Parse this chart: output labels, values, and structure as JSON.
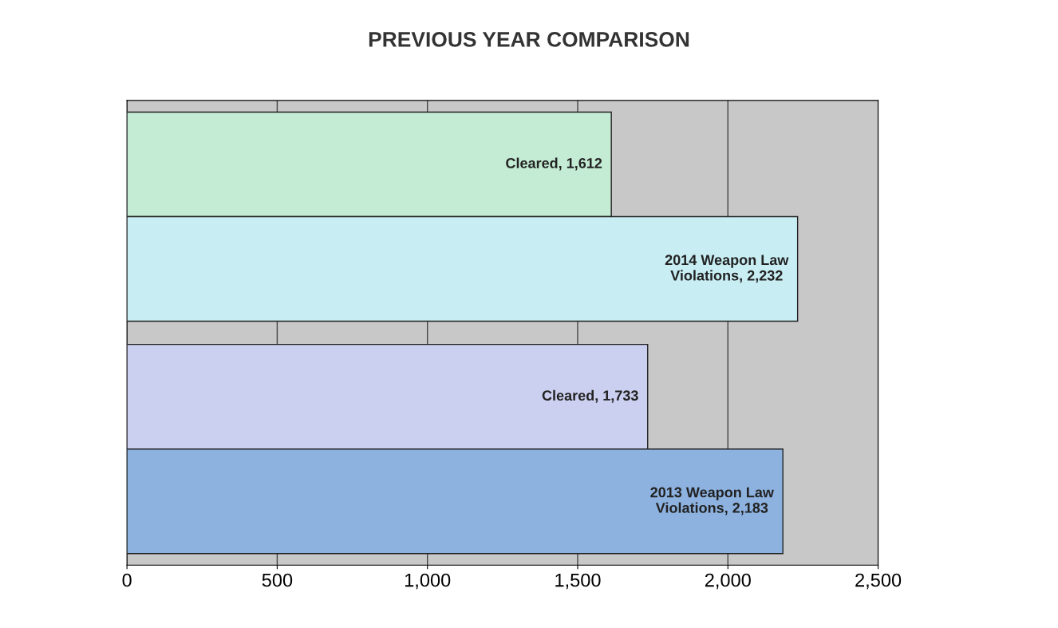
{
  "chart_data": {
    "type": "bar",
    "orientation": "horizontal",
    "title": "PREVIOUS YEAR COMPARISON",
    "categories": [
      null,
      null
    ],
    "series": [
      {
        "colors": [
          "#c4ecd4",
          "#ccd0f0"
        ],
        "values": [
          1612,
          1733
        ],
        "value_labels": [
          "Cleared, 1,612",
          "Cleared, 1,733"
        ]
      },
      {
        "colors": [
          "#c8eef4",
          "#8db2e0"
        ],
        "values": [
          2232,
          2183
        ],
        "value_labels": [
          "2014 Weapon Law\nViolations, 2,232",
          "2013 Weapon Law\nViolations, 2,183"
        ]
      }
    ],
    "xlim": [
      0,
      2500
    ],
    "xticks": [
      0,
      500,
      {
        "value": 1000,
        "label": "1,000"
      },
      {
        "value": 1500,
        "label": "1,500"
      },
      {
        "value": 2000,
        "label": "2,000"
      },
      {
        "value": 2500,
        "label": "2,500"
      }
    ],
    "grid": "x",
    "legend": false
  }
}
